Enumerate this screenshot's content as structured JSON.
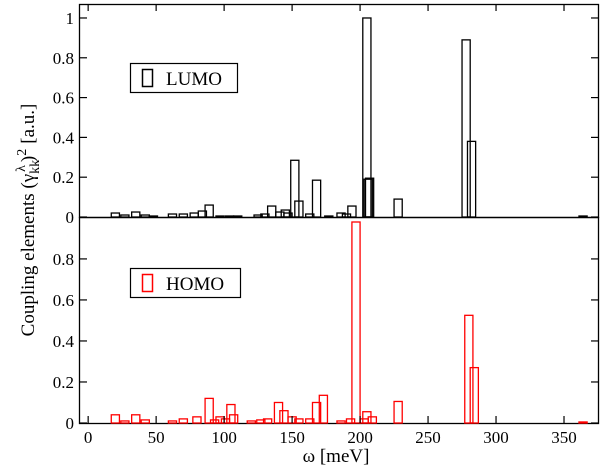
{
  "chart_data": [
    {
      "type": "bar",
      "panel": "top",
      "legend": {
        "label": "LUMO",
        "color": "#000000",
        "placement": "upper-left"
      },
      "xlim": [
        -6,
        375
      ],
      "ylim": [
        0,
        1.02
      ],
      "yticks": [
        "0",
        "0.2",
        "0.4",
        "0.6",
        "0.8",
        "1"
      ],
      "bar_width_meV": 6,
      "bars": [
        {
          "x": 20,
          "y": 0.02
        },
        {
          "x": 27,
          "y": 0.01
        },
        {
          "x": 35,
          "y": 0.025
        },
        {
          "x": 42,
          "y": 0.01
        },
        {
          "x": 48,
          "y": 0.005
        },
        {
          "x": 62,
          "y": 0.015
        },
        {
          "x": 70,
          "y": 0.015
        },
        {
          "x": 78,
          "y": 0.02
        },
        {
          "x": 84,
          "y": 0.03
        },
        {
          "x": 89,
          "y": 0.06
        },
        {
          "x": 97,
          "y": 0.005
        },
        {
          "x": 104,
          "y": 0.005
        },
        {
          "x": 110,
          "y": 0.005
        },
        {
          "x": 125,
          "y": 0.01
        },
        {
          "x": 130,
          "y": 0.015
        },
        {
          "x": 135,
          "y": 0.055
        },
        {
          "x": 141,
          "y": 0.025
        },
        {
          "x": 145,
          "y": 0.035
        },
        {
          "x": 147,
          "y": 0.02
        },
        {
          "x": 152,
          "y": 0.285
        },
        {
          "x": 155,
          "y": 0.08
        },
        {
          "x": 163,
          "y": 0.015
        },
        {
          "x": 168,
          "y": 0.185
        },
        {
          "x": 177,
          "y": 0.005
        },
        {
          "x": 186,
          "y": 0.02
        },
        {
          "x": 190,
          "y": 0.015
        },
        {
          "x": 194,
          "y": 0.055
        },
        {
          "x": 205,
          "y": 1.0
        },
        {
          "x": 206,
          "y": 0.19
        },
        {
          "x": 207,
          "y": 0.195
        },
        {
          "x": 228,
          "y": 0.09
        },
        {
          "x": 278,
          "y": 0.89
        },
        {
          "x": 282,
          "y": 0.38
        },
        {
          "x": 364,
          "y": 0.005
        }
      ]
    },
    {
      "type": "bar",
      "panel": "bottom",
      "legend": {
        "label": "HOMO",
        "color": "#ff0000",
        "placement": "upper-left"
      },
      "xlim": [
        -6,
        375
      ],
      "ylim": [
        0,
        0.98
      ],
      "yticks": [
        "0",
        "0.2",
        "0.4",
        "0.6",
        "0.8"
      ],
      "bar_width_meV": 6,
      "bars": [
        {
          "x": 20,
          "y": 0.04
        },
        {
          "x": 27,
          "y": 0.01
        },
        {
          "x": 35,
          "y": 0.04
        },
        {
          "x": 42,
          "y": 0.015
        },
        {
          "x": 62,
          "y": 0.01
        },
        {
          "x": 70,
          "y": 0.02
        },
        {
          "x": 80,
          "y": 0.03
        },
        {
          "x": 89,
          "y": 0.12
        },
        {
          "x": 93,
          "y": 0.015
        },
        {
          "x": 97,
          "y": 0.03
        },
        {
          "x": 101,
          "y": 0.02
        },
        {
          "x": 105,
          "y": 0.09
        },
        {
          "x": 107,
          "y": 0.04
        },
        {
          "x": 120,
          "y": 0.01
        },
        {
          "x": 127,
          "y": 0.015
        },
        {
          "x": 132,
          "y": 0.02
        },
        {
          "x": 140,
          "y": 0.1
        },
        {
          "x": 144,
          "y": 0.06
        },
        {
          "x": 150,
          "y": 0.03
        },
        {
          "x": 155,
          "y": 0.02
        },
        {
          "x": 163,
          "y": 0.02
        },
        {
          "x": 168,
          "y": 0.1
        },
        {
          "x": 173,
          "y": 0.135
        },
        {
          "x": 186,
          "y": 0.01
        },
        {
          "x": 193,
          "y": 0.02
        },
        {
          "x": 197,
          "y": 0.98
        },
        {
          "x": 203,
          "y": 0.02
        },
        {
          "x": 205,
          "y": 0.055
        },
        {
          "x": 209,
          "y": 0.03
        },
        {
          "x": 228,
          "y": 0.105
        },
        {
          "x": 280,
          "y": 0.525
        },
        {
          "x": 284,
          "y": 0.27
        },
        {
          "x": 364,
          "y": 0.005
        }
      ]
    }
  ],
  "axes": {
    "xlabel": "ω [meV]",
    "ylabel_main": "Coupling elements (γ",
    "ylabel_sub": "kk",
    "ylabel_sup": "λ",
    "ylabel_close": ")",
    "ylabel_power": "2",
    "ylabel_unit": "[a.u.]",
    "xticks": [
      "0",
      "50",
      "100",
      "150",
      "200",
      "250",
      "300",
      "350"
    ]
  },
  "legend_lumo": "LUMO",
  "legend_homo": "HOMO"
}
